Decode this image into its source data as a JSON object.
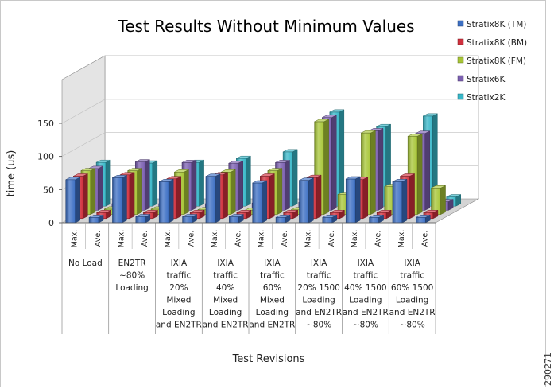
{
  "figure_id": "290271",
  "chart_data": {
    "type": "bar",
    "title": "Test Results Without Minimum Values",
    "xlabel": "Test Revisions",
    "ylabel": "time (us)",
    "ylim": [
      0,
      150
    ],
    "yticks": [
      0,
      50,
      100,
      150
    ],
    "grid": false,
    "legend_position": "top-right",
    "groups": [
      {
        "lines": [
          "No Load"
        ]
      },
      {
        "lines": [
          "EN2TR",
          "~80%",
          "Loading"
        ]
      },
      {
        "lines": [
          "IXIA",
          "traffic",
          "20%",
          "Mixed",
          "Loading",
          "and EN2TR"
        ]
      },
      {
        "lines": [
          "IXIA",
          "traffic",
          "40%",
          "Mixed",
          "Loading",
          "and EN2TR"
        ]
      },
      {
        "lines": [
          "IXIA",
          "traffic",
          "60%",
          "Mixed",
          "Loading",
          "and EN2TR"
        ]
      },
      {
        "lines": [
          "IXIA",
          "traffic",
          "20% 1500",
          "Loading",
          "and EN2TR",
          "~80%"
        ]
      },
      {
        "lines": [
          "IXIA",
          "traffic",
          "40% 1500",
          "Loading",
          "and EN2TR",
          "~80%"
        ]
      },
      {
        "lines": [
          "IXIA",
          "traffic",
          "60% 1500",
          "Loading",
          "and EN2TR",
          "~80%"
        ]
      }
    ],
    "subcategories": [
      "Max.",
      "Ave."
    ],
    "series": [
      {
        "name": "Stratix8K (TM)",
        "color": "#3c6fc4",
        "values": [
          [
            65,
            8
          ],
          [
            68,
            9
          ],
          [
            62,
            9
          ],
          [
            70,
            9
          ],
          [
            60,
            8
          ],
          [
            64,
            8
          ],
          [
            66,
            8
          ],
          [
            62,
            8
          ]
        ]
      },
      {
        "name": "Stratix8K (BM)",
        "color": "#d0303d",
        "values": [
          [
            64,
            9
          ],
          [
            66,
            9
          ],
          [
            60,
            9
          ],
          [
            66,
            9
          ],
          [
            64,
            9
          ],
          [
            62,
            9
          ],
          [
            59,
            9
          ],
          [
            64,
            9
          ]
        ]
      },
      {
        "name": "Stratix8K (FM)",
        "color": "#a7c535",
        "values": [
          [
            66,
            8
          ],
          [
            66,
            8
          ],
          [
            64,
            7
          ],
          [
            64,
            6
          ],
          [
            66,
            7
          ],
          [
            140,
            30
          ],
          [
            123,
            42
          ],
          [
            118,
            40
          ]
        ]
      },
      {
        "name": "Stratix6K",
        "color": "#7b5fb0",
        "values": [
          [
            63,
            10
          ],
          [
            73,
            10
          ],
          [
            72,
            10
          ],
          [
            71,
            11
          ],
          [
            72,
            12
          ],
          [
            140,
            13
          ],
          [
            120,
            14
          ],
          [
            116,
            13
          ]
        ]
      },
      {
        "name": "Stratix2K",
        "color": "#37b7c8",
        "values": [
          [
            66,
            11
          ],
          [
            65,
            11
          ],
          [
            66,
            11
          ],
          [
            72,
            12
          ],
          [
            82,
            12
          ],
          [
            142,
            14
          ],
          [
            120,
            13
          ],
          [
            136,
            14
          ]
        ]
      }
    ]
  }
}
